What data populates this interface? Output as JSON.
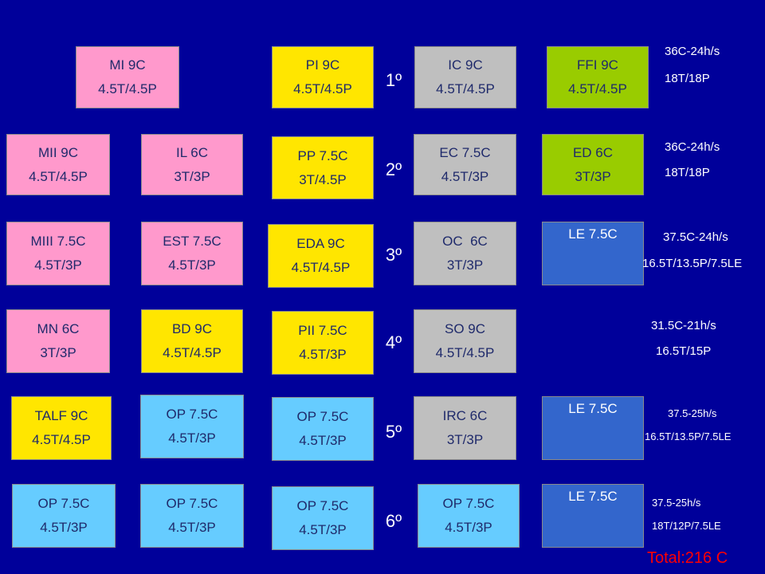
{
  "years": [
    "1º",
    "2º",
    "3º",
    "4º",
    "5º",
    "6º"
  ],
  "subjects": {
    "mi": {
      "name": "MI 9C",
      "load": "4.5T/4.5P"
    },
    "pi": {
      "name": "PI 9C",
      "load": "4.5T/4.5P"
    },
    "ic": {
      "name": "IC 9C",
      "load": "4.5T/4.5P"
    },
    "ffi": {
      "name": "FFI 9C",
      "load": "4.5T/4.5P"
    },
    "mii": {
      "name": "MII 9C",
      "load": "4.5T/4.5P"
    },
    "il": {
      "name": "IL 6C",
      "load": "3T/3P"
    },
    "pp": {
      "name": "PP 7.5C",
      "load": "3T/4.5P"
    },
    "ec": {
      "name": "EC 7.5C",
      "load": "4.5T/3P"
    },
    "ed": {
      "name": "ED 6C",
      "load": "3T/3P"
    },
    "miii": {
      "name": "MIII 7.5C",
      "load": "4.5T/3P"
    },
    "est": {
      "name": "EST 7.5C",
      "load": "4.5T/3P"
    },
    "eda": {
      "name": "EDA 9C",
      "load": "4.5T/4.5P"
    },
    "oc": {
      "name": "OC  6C",
      "load": "3T/3P"
    },
    "le3": {
      "name": "LE 7.5C"
    },
    "mn": {
      "name": "MN 6C",
      "load": "3T/3P"
    },
    "bd": {
      "name": "BD 9C",
      "load": "4.5T/4.5P"
    },
    "pii": {
      "name": "PII 7.5C",
      "load": "4.5T/3P"
    },
    "so": {
      "name": "SO 9C",
      "load": "4.5T/4.5P"
    },
    "talf": {
      "name": "TALF 9C",
      "load": "4.5T/4.5P"
    },
    "op5a": {
      "name": "OP 7.5C",
      "load": "4.5T/3P"
    },
    "op5b": {
      "name": "OP 7.5C",
      "load": "4.5T/3P"
    },
    "irc": {
      "name": "IRC 6C",
      "load": "3T/3P"
    },
    "le5": {
      "name": "LE 7.5C"
    },
    "op6a": {
      "name": "OP 7.5C",
      "load": "4.5T/3P"
    },
    "op6b": {
      "name": "OP 7.5C",
      "load": "4.5T/3P"
    },
    "op6c": {
      "name": "OP 7.5C",
      "load": "4.5T/3P"
    },
    "op6d": {
      "name": "OP 7.5C",
      "load": "4.5T/3P"
    },
    "le6": {
      "name": "LE 7.5C"
    }
  },
  "year_notes": [
    {
      "credits": "36C-24h/s",
      "split": "18T/18P"
    },
    {
      "credits": "36C-24h/s",
      "split": "18T/18P"
    },
    {
      "credits": "37.5C-24h/s",
      "split": "16.5T/13.5P/7.5LE"
    },
    {
      "credits": "31.5C-21h/s",
      "split": "16.5T/15P"
    },
    {
      "credits": "37.5-25h/s",
      "split": "16.5T/13.5P/7.5LE"
    },
    {
      "credits": "37.5-25h/s",
      "split": "18T/12P/7.5LE"
    }
  ],
  "total": "Total:216 C",
  "colors": {
    "background": "#00009a",
    "pink": "#ff99cc",
    "yellow": "#ffe600",
    "gray": "#bfbfbf",
    "green": "#99cc00",
    "sky": "#66ccff",
    "blue": "#3366cc",
    "total": "#ff0000"
  }
}
